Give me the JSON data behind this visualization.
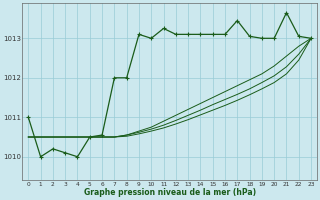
{
  "xlabel": "Graphe pression niveau de la mer (hPa)",
  "x_ticks": [
    0,
    1,
    2,
    3,
    4,
    5,
    6,
    7,
    8,
    9,
    10,
    11,
    12,
    13,
    14,
    15,
    16,
    17,
    18,
    19,
    20,
    21,
    22,
    23
  ],
  "ylim": [
    1009.4,
    1013.9
  ],
  "yticks": [
    1010,
    1011,
    1012,
    1013
  ],
  "bg_color": "#cce8ee",
  "grid_color": "#99ccd6",
  "line_color": "#1a5c1a",
  "main_series": [
    1011.0,
    1010.0,
    1010.2,
    1010.1,
    1010.0,
    1010.5,
    1010.55,
    1012.0,
    1012.0,
    1013.1,
    1013.0,
    1013.25,
    1013.1,
    1013.1,
    1013.1,
    1013.1,
    1013.1,
    1013.45,
    1013.05,
    1013.0,
    1013.0,
    1013.65,
    1013.05,
    1013.0
  ],
  "line2": [
    1010.5,
    1010.5,
    1010.5,
    1010.5,
    1010.5,
    1010.5,
    1010.5,
    1010.5,
    1010.55,
    1010.65,
    1010.75,
    1010.9,
    1011.05,
    1011.2,
    1011.35,
    1011.5,
    1011.65,
    1011.8,
    1011.95,
    1012.1,
    1012.3,
    1012.55,
    1012.8,
    1013.0
  ],
  "line3": [
    1010.5,
    1010.5,
    1010.5,
    1010.5,
    1010.5,
    1010.5,
    1010.5,
    1010.5,
    1010.55,
    1010.62,
    1010.7,
    1010.8,
    1010.92,
    1011.05,
    1011.18,
    1011.32,
    1011.45,
    1011.58,
    1011.72,
    1011.88,
    1012.05,
    1012.28,
    1012.6,
    1013.0
  ],
  "line4": [
    1010.5,
    1010.5,
    1010.5,
    1010.5,
    1010.5,
    1010.5,
    1010.5,
    1010.5,
    1010.52,
    1010.58,
    1010.65,
    1010.73,
    1010.83,
    1010.94,
    1011.06,
    1011.18,
    1011.3,
    1011.43,
    1011.57,
    1011.72,
    1011.88,
    1012.1,
    1012.45,
    1013.0
  ]
}
